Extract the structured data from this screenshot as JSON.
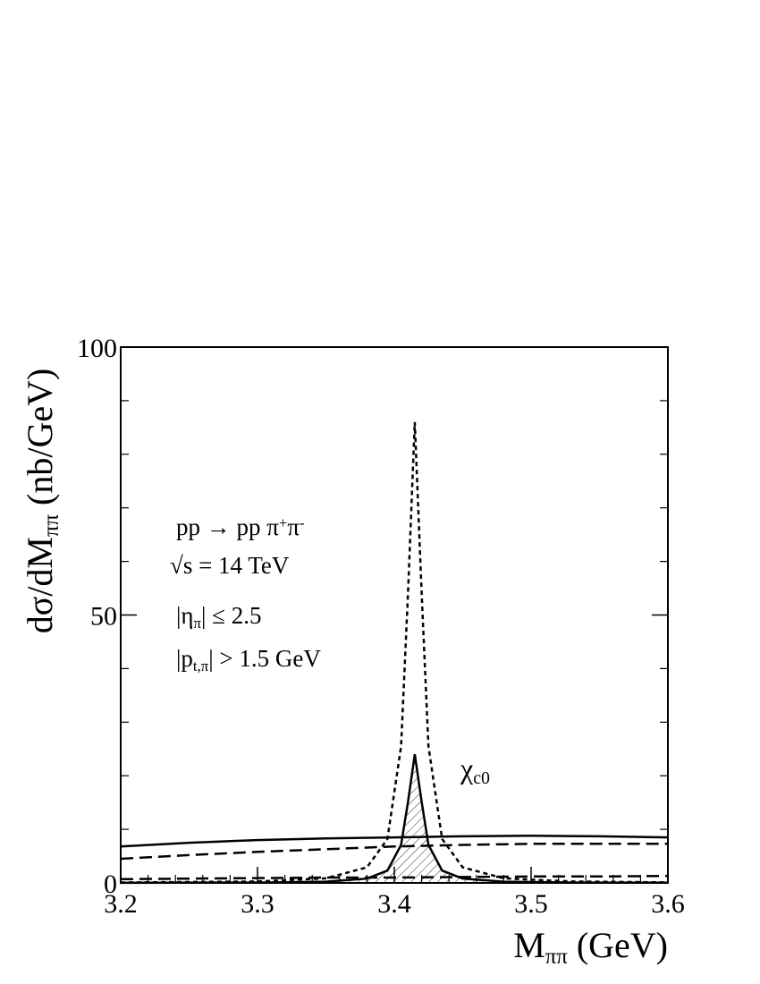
{
  "chart_data": {
    "type": "line",
    "x_label": [
      {
        "text": "M"
      },
      {
        "text": "ππ",
        "shift": "sub"
      },
      {
        "text": " (GeV)"
      }
    ],
    "y_label": [
      {
        "text": "dσ/dM"
      },
      {
        "text": "ππ",
        "shift": "sub"
      },
      {
        "text": " (nb/GeV)"
      }
    ],
    "annotations": [
      [
        {
          "text": "pp → pp π"
        },
        {
          "text": "+",
          "shift": "sup"
        },
        {
          "text": "π"
        },
        {
          "text": "-",
          "shift": "sup"
        }
      ],
      [
        {
          "text": "√s = 14 TeV"
        }
      ],
      [
        {
          "text": "|η"
        },
        {
          "text": "π",
          "shift": "sub"
        },
        {
          "text": "| ≤ 2.5"
        }
      ],
      [
        {
          "text": "|p"
        },
        {
          "text": "t,π",
          "shift": "sub"
        },
        {
          "text": "| > 1.5 GeV"
        }
      ],
      [
        {
          "text": "χ"
        },
        {
          "text": "c0",
          "shift": "sub"
        }
      ]
    ],
    "xlim": [
      3.2,
      3.6
    ],
    "xticks": [
      3.2,
      3.3,
      3.4,
      3.5,
      3.6
    ],
    "xminorticks": [
      3.22,
      3.24,
      3.26,
      3.28,
      3.32,
      3.34,
      3.36,
      3.38,
      3.42,
      3.44,
      3.46,
      3.48,
      3.52,
      3.54,
      3.56,
      3.58
    ],
    "ylim": [
      0,
      100
    ],
    "yticks": [
      0,
      50,
      100
    ],
    "yminorticks": [
      10,
      20,
      30,
      40,
      60,
      70,
      80,
      90
    ],
    "series": [
      {
        "color": "#000000",
        "dash": "solid",
        "x": [
          3.2,
          3.25,
          3.3,
          3.35,
          3.4,
          3.45,
          3.5,
          3.55,
          3.6
        ],
        "values": [
          6.8,
          7.5,
          8.0,
          8.3,
          8.5,
          8.7,
          8.8,
          8.7,
          8.5
        ]
      },
      {
        "color": "#000000",
        "dash": "long",
        "x": [
          3.2,
          3.25,
          3.3,
          3.35,
          3.4,
          3.45,
          3.5,
          3.55,
          3.6
        ],
        "values": [
          4.5,
          5.2,
          5.8,
          6.3,
          6.8,
          7.1,
          7.3,
          7.3,
          7.3
        ]
      },
      {
        "color": "#000000",
        "dash": "long",
        "x": [
          3.2,
          3.25,
          3.3,
          3.35,
          3.4,
          3.45,
          3.5,
          3.55,
          3.6
        ],
        "values": [
          0.7,
          0.8,
          0.9,
          1.0,
          1.0,
          1.1,
          1.2,
          1.2,
          1.3
        ]
      },
      {
        "color": "#000000",
        "dash": "dotted",
        "x": [
          3.2,
          3.3,
          3.35,
          3.38,
          3.395,
          3.405,
          3.41,
          3.415,
          3.42,
          3.425,
          3.435,
          3.45,
          3.48,
          3.53,
          3.6
        ],
        "values": [
          0.08,
          0.27,
          0.85,
          2.9,
          8.2,
          25.5,
          54,
          86,
          54,
          25.5,
          8.2,
          2.9,
          0.85,
          0.27,
          0.1
        ]
      },
      {
        "color": "#000000",
        "dash": "solid",
        "hatch": true,
        "x": [
          3.2,
          3.3,
          3.35,
          3.38,
          3.395,
          3.405,
          3.41,
          3.415,
          3.42,
          3.425,
          3.435,
          3.45,
          3.48,
          3.53,
          3.6
        ],
        "values": [
          0.02,
          0.07,
          0.24,
          0.8,
          2.3,
          7.1,
          15.1,
          24,
          15.1,
          7.1,
          2.3,
          0.8,
          0.24,
          0.07,
          0.03
        ]
      }
    ]
  }
}
